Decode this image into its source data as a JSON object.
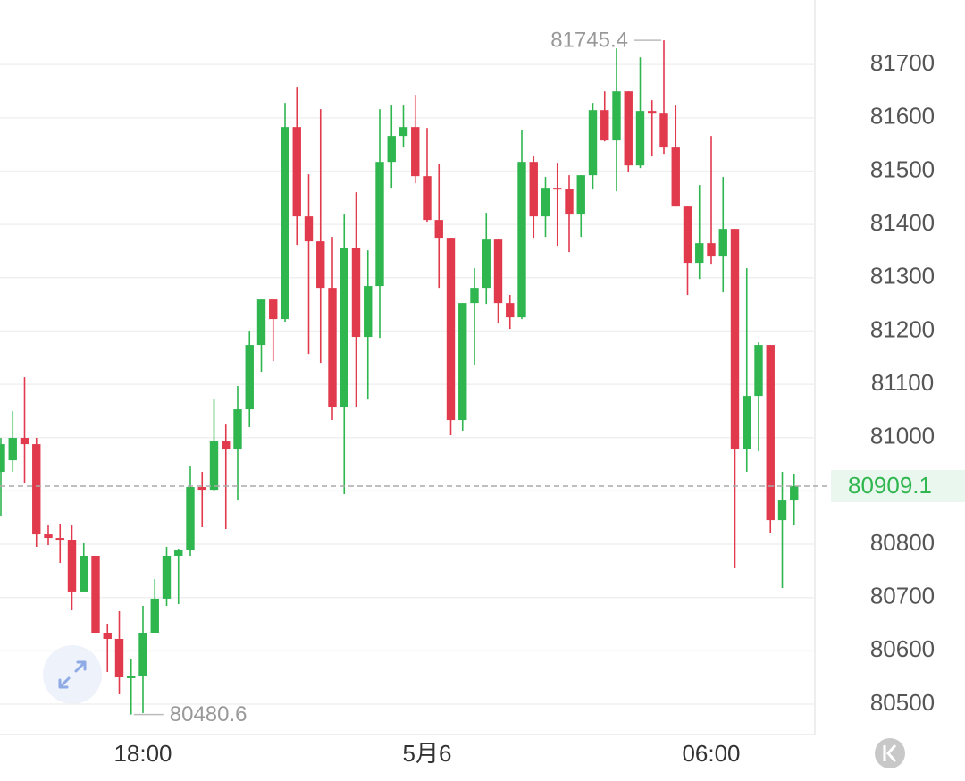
{
  "chart_data": {
    "type": "candlestick",
    "categories": [
      null,
      null,
      null,
      null,
      null,
      null,
      null,
      null,
      null,
      null,
      null,
      null,
      "18:00",
      null,
      null,
      null,
      null,
      null,
      null,
      null,
      null,
      null,
      null,
      null,
      null,
      null,
      null,
      null,
      null,
      null,
      null,
      null,
      null,
      null,
      null,
      null,
      "5月6",
      null,
      null,
      null,
      null,
      null,
      null,
      null,
      null,
      null,
      null,
      null,
      null,
      null,
      null,
      null,
      null,
      null,
      null,
      null,
      null,
      null,
      null,
      null,
      "06:00",
      null,
      null,
      null,
      null,
      null,
      null,
      null
    ],
    "open": [
      80935.8,
      80957.5,
      80999.5,
      80987.7,
      80818.4,
      80811.7,
      80808.4,
      80711.3,
      80778.3,
      80634.1,
      80622.4,
      80550.3,
      80552.0,
      80634.1,
      80697.9,
      80778.3,
      80788.3,
      80907.3,
      80902.2,
      80992.8,
      80977.7,
      81053.1,
      81173.8,
      81259.2,
      81222.4,
      81582.7,
      81415.1,
      81368.2,
      81281.0,
      81058.1,
      81356.5,
      81188.9,
      81284.4,
      81517.3,
      81566.0,
      81582.7,
      81490.5,
      81408.4,
      81374.9,
      81033.0,
      81252.5,
      81281.0,
      81371.5,
      81252.5,
      81225.7,
      81517.3,
      81415.1,
      81468.7,
      81467.1,
      81418.5,
      81492.2,
      81614.5,
      81557.6,
      81649.7,
      81510.6,
      81612.9,
      81607.8,
      81544.2,
      81433.5,
      81328.0,
      81364.8,
      81339.7,
      81391.6,
      80977.7,
      81078.2,
      81173.8,
      80845.2,
      80882.1
    ],
    "high": [
      80999.5,
      81049.7,
      81113.4,
      80999.5,
      80835.2,
      80838.6,
      80835.2,
      80801.7,
      80778.3,
      80650.9,
      80674.3,
      80583.8,
      80684.4,
      80734.7,
      80795.0,
      80791.6,
      80945.8,
      80935.8,
      81073.2,
      81024.6,
      81096.7,
      81200.6,
      81259.2,
      81259.2,
      81628.0,
      81658.1,
      81493.9,
      81616.2,
      81376.6,
      81418.5,
      81460.4,
      81351.4,
      81616.2,
      81623.0,
      81623.0,
      81643.0,
      81581.0,
      81514.0,
      81374.9,
      81252.5,
      81317.9,
      81421.8,
      81371.5,
      81267.7,
      81577.7,
      81527.4,
      81488.9,
      81515.7,
      81492.2,
      81492.2,
      81628.0,
      81649.7,
      81730.2,
      81649.7,
      81713.4,
      81633.0,
      81745.4,
      81623.0,
      81433.5,
      81473.8,
      81566.0,
      81488.9,
      81391.6,
      81317.9,
      81178.8,
      81173.8,
      80935.8,
      80932.4
    ],
    "low": [
      80851.9,
      80935.8,
      80915.6,
      80795.0,
      80798.3,
      80764.8,
      80676.0,
      80709.6,
      80634.1,
      80560.4,
      80518.5,
      80480.6,
      80483.3,
      80634.1,
      80684.4,
      80687.7,
      80778.3,
      80831.9,
      80898.9,
      80828.5,
      80882.1,
      81019.6,
      81123.5,
      81143.6,
      81217.4,
      81361.5,
      81157.0,
      81140.2,
      81033.0,
      80893.9,
      81058.1,
      81071.5,
      81187.2,
      81468.7,
      81544.2,
      81477.1,
      81405.1,
      81281.0,
      81004.5,
      81012.9,
      81136.9,
      81250.9,
      81214.0,
      81204.0,
      81222.4,
      81374.9,
      81376.6,
      81359.8,
      81348.1,
      81376.6,
      81465.4,
      81555.9,
      81462.0,
      81498.9,
      81505.6,
      81527.4,
      81532.4,
      81433.5,
      81267.7,
      81297.8,
      81326.3,
      81272.7,
      80754.8,
      80935.8,
      80974.3,
      80821.8,
      80718.0,
      80836.9
    ],
    "close": [
      80987.7,
      80999.5,
      80987.7,
      80818.4,
      80811.7,
      80808.4,
      80711.3,
      80778.3,
      80634.1,
      80622.4,
      80550.3,
      80552.0,
      80634.1,
      80697.9,
      80778.3,
      80788.3,
      80907.3,
      80902.2,
      80992.8,
      80977.7,
      81053.1,
      81173.8,
      81259.2,
      81222.4,
      81582.7,
      81415.1,
      81368.2,
      81281.0,
      81058.1,
      81356.5,
      81188.9,
      81284.4,
      81517.3,
      81566.0,
      81582.7,
      81490.5,
      81408.4,
      81374.9,
      81033.0,
      81252.5,
      81281.0,
      81371.5,
      81252.5,
      81225.7,
      81517.3,
      81415.1,
      81468.7,
      81467.1,
      81418.5,
      81492.2,
      81614.5,
      81557.6,
      81649.7,
      81510.6,
      81612.9,
      81607.8,
      81544.2,
      81433.5,
      81328.0,
      81364.8,
      81339.7,
      81391.6,
      80977.7,
      81078.2,
      81173.8,
      80845.2,
      80882.1,
      80909.1
    ],
    "up_color": "#2fb64f",
    "down_color": "#e13a4c",
    "ylim": [
      80443,
      81821
    ],
    "yticks": [
      80500,
      80600,
      80700,
      80800,
      80900,
      81000,
      81100,
      81200,
      81300,
      81400,
      81500,
      81600,
      81700
    ],
    "grid": true
  }
}
